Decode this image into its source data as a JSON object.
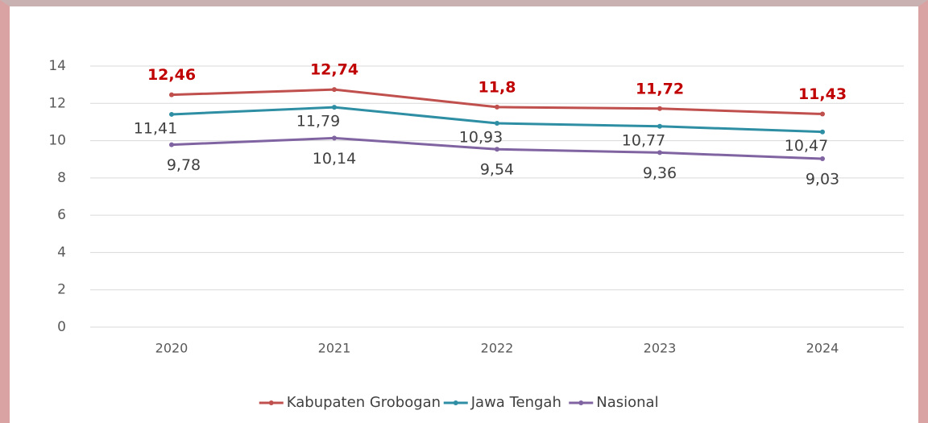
{
  "chart_data": {
    "type": "line",
    "categories": [
      "2020",
      "2021",
      "2022",
      "2023",
      "2024"
    ],
    "series": [
      {
        "name": "Kabupaten Grobogan",
        "color": "#c0504d",
        "values": [
          12.46,
          12.74,
          11.8,
          11.72,
          11.43
        ],
        "value_labels": [
          "12,46",
          "12,74",
          "11,8",
          "11,72",
          "11,43"
        ]
      },
      {
        "name": "Jawa Tengah",
        "color": "#2e8ea3",
        "values": [
          11.41,
          11.79,
          10.93,
          10.77,
          10.47
        ],
        "value_labels": [
          "11,41",
          "11,79",
          "10,93",
          "10,77",
          "10,47"
        ]
      },
      {
        "name": "Nasional",
        "color": "#8064a2",
        "values": [
          9.78,
          10.14,
          9.54,
          9.36,
          9.03
        ],
        "value_labels": [
          "9,78",
          "10,14",
          "9,54",
          "9,36",
          "9,03"
        ]
      }
    ],
    "ylim": [
      0,
      14
    ],
    "yticks": [
      0,
      2,
      4,
      6,
      8,
      10,
      12,
      14
    ],
    "grid": true,
    "legend": "bottom"
  }
}
